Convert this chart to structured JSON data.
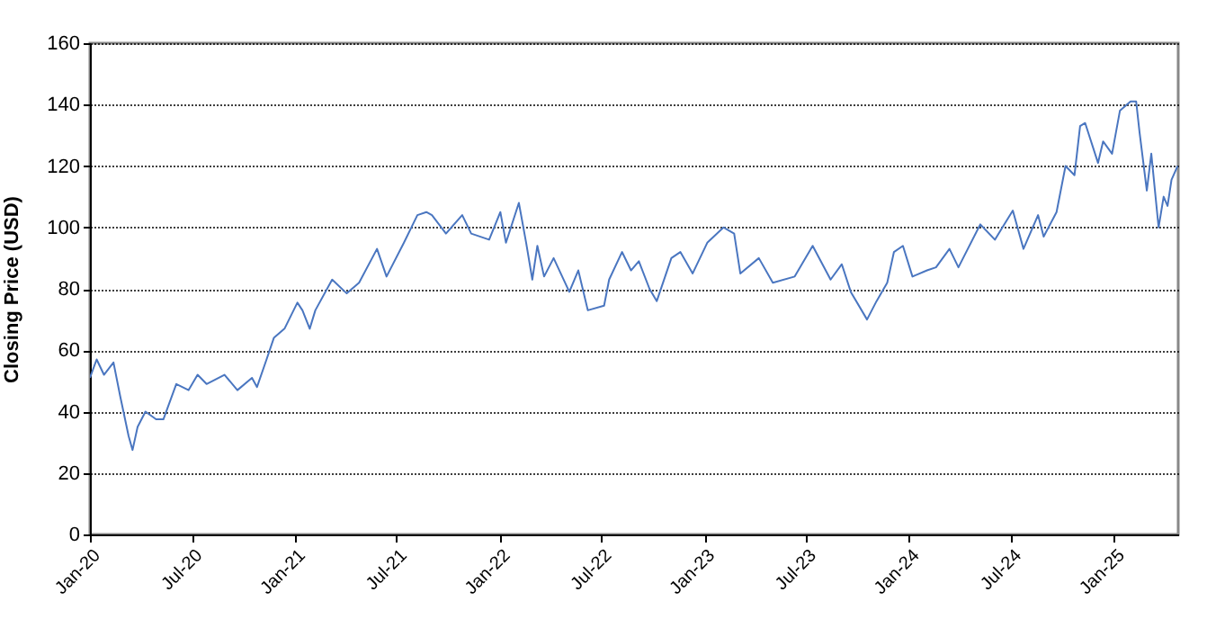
{
  "chart_data": {
    "type": "line",
    "ylabel": "Closing Price (USD)",
    "xlim": [
      "2020-01-01",
      "2025-04-25"
    ],
    "xticks": [
      {
        "value": "2020-01-01",
        "label": "Jan-20"
      },
      {
        "value": "2020-07-01",
        "label": "Jul-20"
      },
      {
        "value": "2021-01-01",
        "label": "Jan-21"
      },
      {
        "value": "2021-07-01",
        "label": "Jul-21"
      },
      {
        "value": "2022-01-01",
        "label": "Jan-22"
      },
      {
        "value": "2022-07-01",
        "label": "Jul-22"
      },
      {
        "value": "2023-01-01",
        "label": "Jan-23"
      },
      {
        "value": "2023-07-01",
        "label": "Jul-23"
      },
      {
        "value": "2024-01-01",
        "label": "Jan-24"
      },
      {
        "value": "2024-07-01",
        "label": "Jul-24"
      },
      {
        "value": "2025-01-01",
        "label": "Jan-25"
      }
    ],
    "ylim": [
      0,
      160
    ],
    "yticks": [
      0,
      20,
      40,
      60,
      80,
      100,
      120,
      140,
      160
    ],
    "grid": "y",
    "x": [
      "2020-01-01",
      "2020-01-13",
      "2020-01-26",
      "2020-02-12",
      "2020-02-24",
      "2020-03-10",
      "2020-03-17",
      "2020-03-26",
      "2020-04-09",
      "2020-04-28",
      "2020-05-11",
      "2020-06-03",
      "2020-06-25",
      "2020-07-11",
      "2020-07-27",
      "2020-08-28",
      "2020-09-20",
      "2020-10-16",
      "2020-10-25",
      "2020-11-11",
      "2020-11-24",
      "2020-12-13",
      "2021-01-05",
      "2021-01-14",
      "2021-01-27",
      "2021-02-06",
      "2021-03-08",
      "2021-04-03",
      "2021-04-25",
      "2021-05-27",
      "2021-06-13",
      "2021-07-14",
      "2021-08-07",
      "2021-08-23",
      "2021-09-02",
      "2021-09-27",
      "2021-10-26",
      "2021-11-11",
      "2021-12-13",
      "2022-01-02",
      "2022-01-12",
      "2022-02-04",
      "2022-02-17",
      "2022-02-28",
      "2022-03-09",
      "2022-03-21",
      "2022-04-07",
      "2022-05-05",
      "2022-05-21",
      "2022-06-07",
      "2022-07-06",
      "2022-07-15",
      "2022-08-07",
      "2022-08-23",
      "2022-09-06",
      "2022-09-25",
      "2022-10-08",
      "2022-11-03",
      "2022-11-19",
      "2022-12-11",
      "2023-01-06",
      "2023-02-04",
      "2023-02-23",
      "2023-03-06",
      "2023-04-08",
      "2023-05-03",
      "2023-06-11",
      "2023-07-13",
      "2023-08-14",
      "2023-09-03",
      "2023-09-19",
      "2023-10-18",
      "2023-11-04",
      "2023-11-23",
      "2023-12-05",
      "2023-12-21",
      "2024-01-07",
      "2024-02-02",
      "2024-02-18",
      "2024-03-13",
      "2024-03-29",
      "2024-05-07",
      "2024-06-02",
      "2024-07-04",
      "2024-07-23",
      "2024-08-18",
      "2024-08-28",
      "2024-09-20",
      "2024-10-06",
      "2024-10-22",
      "2024-11-01",
      "2024-11-10",
      "2024-12-03",
      "2024-12-12",
      "2024-12-28",
      "2025-01-11",
      "2025-01-30",
      "2025-02-09",
      "2025-02-15",
      "2025-02-28",
      "2025-03-08",
      "2025-03-21",
      "2025-03-30",
      "2025-04-06",
      "2025-04-13",
      "2025-04-24"
    ],
    "series": [
      {
        "color": "#4a76c0",
        "values": [
          51,
          57,
          52,
          56,
          45,
          32,
          27.5,
          35,
          40,
          37.5,
          37.5,
          49,
          47,
          52,
          49,
          52,
          47,
          51,
          48,
          57,
          64,
          67,
          75.5,
          73,
          67,
          73,
          83,
          78.5,
          82,
          93,
          84,
          95,
          104,
          105,
          104,
          98,
          104,
          98,
          96,
          105,
          95,
          108,
          95,
          83,
          94,
          84,
          90,
          79,
          86,
          73,
          74.5,
          83,
          92,
          86,
          89,
          80,
          76,
          90,
          92,
          85,
          95,
          100,
          98,
          85,
          90,
          82,
          84,
          94,
          83,
          88,
          79,
          70,
          76,
          82,
          92,
          94,
          84,
          86,
          87,
          93,
          87,
          101,
          96,
          105.5,
          93,
          104,
          97,
          105,
          120,
          117,
          133,
          134,
          121,
          128,
          124,
          138,
          141,
          141,
          131,
          112,
          124,
          100,
          110,
          107,
          115.5,
          120
        ]
      }
    ]
  }
}
